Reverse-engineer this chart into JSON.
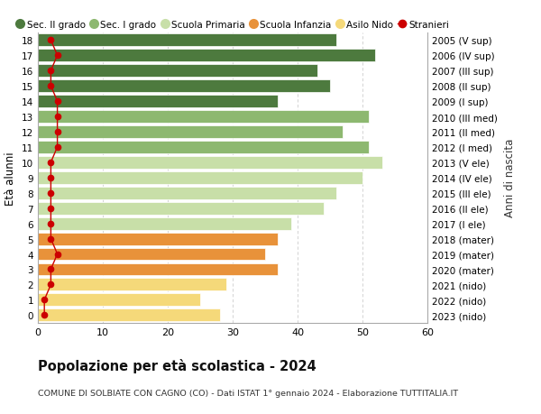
{
  "ages": [
    0,
    1,
    2,
    3,
    4,
    5,
    6,
    7,
    8,
    9,
    10,
    11,
    12,
    13,
    14,
    15,
    16,
    17,
    18
  ],
  "values": [
    28,
    25,
    29,
    37,
    35,
    37,
    39,
    44,
    46,
    50,
    53,
    51,
    47,
    51,
    37,
    45,
    43,
    52,
    46
  ],
  "stranieri": [
    1,
    1,
    2,
    2,
    3,
    2,
    2,
    2,
    2,
    2,
    2,
    3,
    3,
    3,
    3,
    2,
    2,
    3,
    2
  ],
  "right_labels": [
    "2023 (nido)",
    "2022 (nido)",
    "2021 (nido)",
    "2020 (mater)",
    "2019 (mater)",
    "2018 (mater)",
    "2017 (I ele)",
    "2016 (II ele)",
    "2015 (III ele)",
    "2014 (IV ele)",
    "2013 (V ele)",
    "2012 (I med)",
    "2011 (II med)",
    "2010 (III med)",
    "2009 (I sup)",
    "2008 (II sup)",
    "2007 (III sup)",
    "2006 (IV sup)",
    "2005 (V sup)"
  ],
  "bar_colors": [
    "#f5d97a",
    "#f5d97a",
    "#f5d97a",
    "#e8923a",
    "#e8923a",
    "#e8923a",
    "#c8dfa8",
    "#c8dfa8",
    "#c8dfa8",
    "#c8dfa8",
    "#c8dfa8",
    "#8db870",
    "#8db870",
    "#8db870",
    "#4d7a3e",
    "#4d7a3e",
    "#4d7a3e",
    "#4d7a3e",
    "#4d7a3e"
  ],
  "legend_labels": [
    "Sec. II grado",
    "Sec. I grado",
    "Scuola Primaria",
    "Scuola Infanzia",
    "Asilo Nido",
    "Stranieri"
  ],
  "legend_colors": [
    "#4d7a3e",
    "#8db870",
    "#c8dfa8",
    "#e8923a",
    "#f5d97a",
    "#cc0000"
  ],
  "ylabel": "Età alunni",
  "right_ylabel": "Anni di nascita",
  "title": "Popolazione per età scolastica - 2024",
  "subtitle": "COMUNE DI SOLBIATE CON CAGNO (CO) - Dati ISTAT 1° gennaio 2024 - Elaborazione TUTTITALIA.IT",
  "xlim": [
    0,
    60
  ],
  "xticks": [
    0,
    10,
    20,
    30,
    40,
    50,
    60
  ],
  "grid_color": "#cccccc",
  "bg_color": "#ffffff",
  "stranieri_color": "#cc0000",
  "stranieri_line_color": "#cc0000"
}
